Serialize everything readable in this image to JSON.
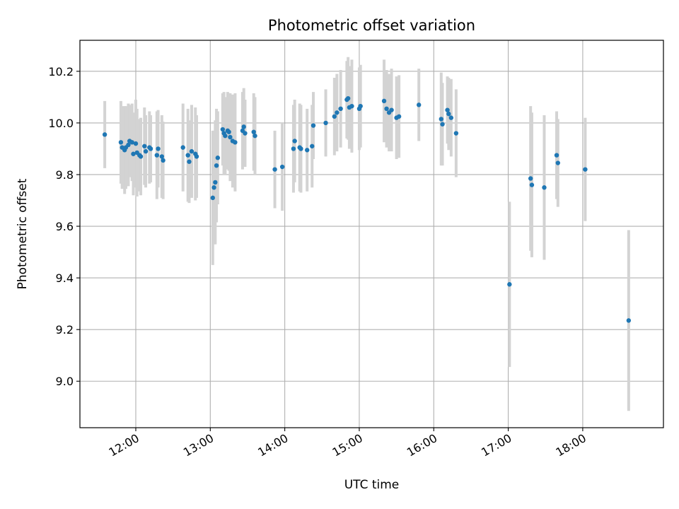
{
  "chart_data": {
    "type": "scatter",
    "title": "Photometric offset variation",
    "xlabel": "UTC time",
    "ylabel": "Photometric offset",
    "x_axis_kind": "time",
    "xlim": [
      "11:15",
      "19:05"
    ],
    "ylim": [
      8.82,
      10.32
    ],
    "x_ticks": [
      "12:00",
      "13:00",
      "14:00",
      "15:00",
      "16:00",
      "17:00",
      "18:00"
    ],
    "y_ticks": [
      "9.0",
      "9.2",
      "9.4",
      "9.6",
      "9.8",
      "10.0",
      "10.2"
    ],
    "grid": true,
    "colors": {
      "points": "#1f77b4",
      "error_bars": "#d3d3d3",
      "grid": "#b0b0b0"
    },
    "series": [
      {
        "x": [
          "11:35",
          "11:48",
          "11:49",
          "11:51",
          "11:52",
          "11:54",
          "11:55",
          "11:57",
          "11:58",
          "12:00",
          "12:01",
          "12:03",
          "12:04",
          "12:07",
          "12:08",
          "12:11",
          "12:12",
          "12:17",
          "12:18",
          "12:21",
          "12:22",
          "12:38",
          "12:42",
          "12:43",
          "12:45",
          "12:48",
          "12:49",
          "13:02",
          "13:03",
          "13:04",
          "13:05",
          "13:06",
          "13:10",
          "13:11",
          "13:12",
          "13:14",
          "13:15",
          "13:16",
          "13:18",
          "13:20",
          "13:26",
          "13:27",
          "13:28",
          "13:35",
          "13:36",
          "13:52",
          "13:58",
          "14:07",
          "14:08",
          "14:12",
          "14:13",
          "14:18",
          "14:22",
          "14:23",
          "14:33",
          "14:40",
          "14:42",
          "14:45",
          "14:50",
          "14:51",
          "14:52",
          "14:54",
          "15:00",
          "15:01",
          "15:20",
          "15:22",
          "15:24",
          "15:26",
          "15:30",
          "15:32",
          "15:48",
          "16:06",
          "16:07",
          "16:11",
          "16:12",
          "16:14",
          "16:18",
          "17:01",
          "17:18",
          "17:19",
          "17:29",
          "17:39",
          "17:40",
          "18:02",
          "18:37"
        ],
        "y": [
          9.955,
          9.925,
          9.905,
          9.895,
          9.905,
          9.915,
          9.93,
          9.925,
          9.88,
          9.92,
          9.885,
          9.875,
          9.87,
          9.91,
          9.89,
          9.905,
          9.9,
          9.875,
          9.9,
          9.87,
          9.855,
          9.905,
          9.875,
          9.85,
          9.89,
          9.88,
          9.87,
          9.71,
          9.75,
          9.77,
          9.835,
          9.865,
          9.975,
          9.96,
          9.95,
          9.97,
          9.965,
          9.945,
          9.93,
          9.925,
          9.97,
          9.985,
          9.96,
          9.965,
          9.95,
          9.82,
          9.83,
          9.9,
          9.93,
          9.905,
          9.9,
          9.895,
          9.91,
          9.99,
          10.0,
          10.025,
          10.04,
          10.055,
          10.09,
          10.095,
          10.06,
          10.065,
          10.055,
          10.065,
          10.085,
          10.055,
          10.04,
          10.05,
          10.02,
          10.025,
          10.07,
          10.015,
          9.995,
          10.05,
          10.035,
          10.02,
          9.96,
          9.375,
          9.785,
          9.76,
          9.75,
          9.875,
          9.845,
          9.82,
          9.235
        ],
        "err": [
          0.13,
          0.16,
          0.16,
          0.17,
          0.16,
          0.16,
          0.14,
          0.15,
          0.16,
          0.17,
          0.17,
          0.14,
          0.15,
          0.15,
          0.14,
          0.14,
          0.13,
          0.17,
          0.15,
          0.16,
          0.15,
          0.17,
          0.18,
          0.16,
          0.18,
          0.18,
          0.16,
          0.26,
          0.22,
          0.24,
          0.22,
          0.18,
          0.14,
          0.16,
          0.15,
          0.15,
          0.15,
          0.17,
          0.18,
          0.19,
          0.15,
          0.15,
          0.13,
          0.15,
          0.15,
          0.15,
          0.17,
          0.17,
          0.16,
          0.17,
          0.17,
          0.16,
          0.16,
          0.13,
          0.13,
          0.15,
          0.15,
          0.15,
          0.15,
          0.16,
          0.16,
          0.18,
          0.16,
          0.16,
          0.16,
          0.15,
          0.15,
          0.16,
          0.16,
          0.16,
          0.14,
          0.18,
          0.16,
          0.13,
          0.14,
          0.15,
          0.17,
          0.32,
          0.28,
          0.28,
          0.28,
          0.17,
          0.17,
          0.2,
          0.35
        ]
      }
    ]
  }
}
